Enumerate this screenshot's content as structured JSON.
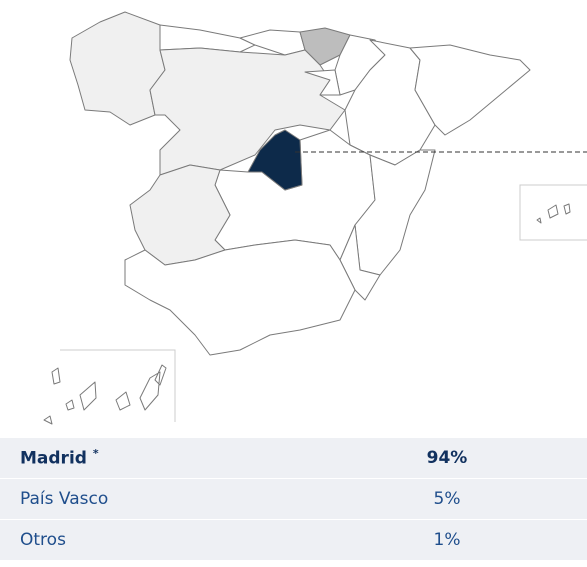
{
  "table": {
    "rows": [
      {
        "region": "Madrid",
        "note": "*",
        "value": "94%"
      },
      {
        "region": "País Vasco",
        "value": "5%"
      },
      {
        "region": "Otros",
        "value": "1%"
      }
    ]
  }
}
